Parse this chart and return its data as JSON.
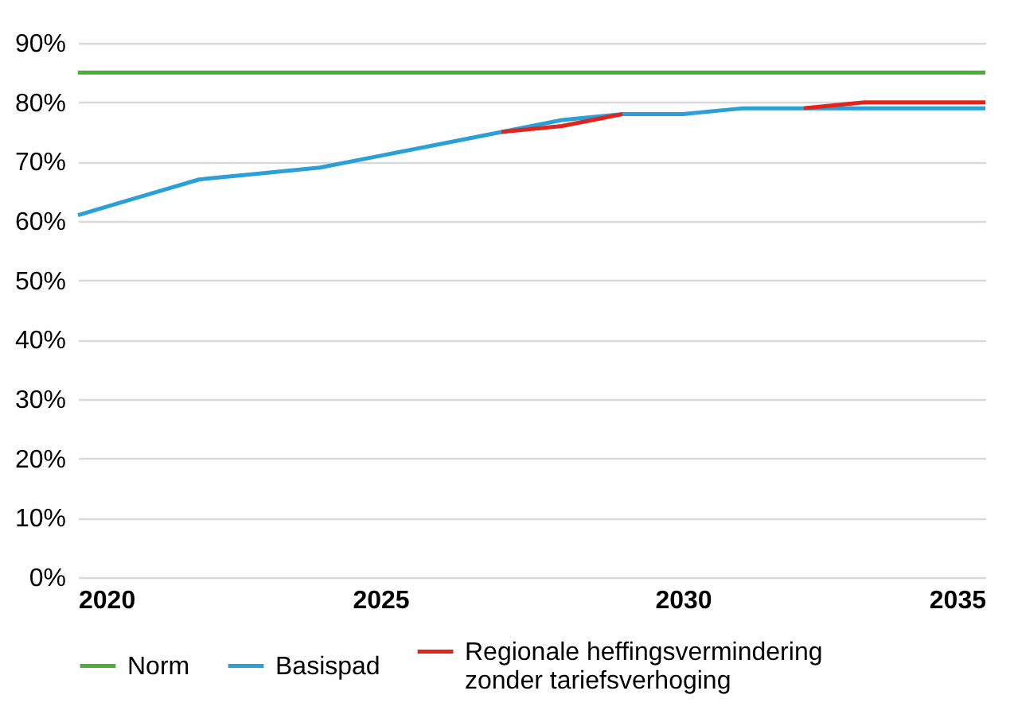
{
  "chart_data": {
    "type": "line",
    "x": [
      2020,
      2021,
      2022,
      2023,
      2024,
      2025,
      2026,
      2027,
      2028,
      2029,
      2030,
      2031,
      2032,
      2033,
      2034,
      2035
    ],
    "series": [
      {
        "name": "Norm",
        "color": "#4cae3a",
        "values": [
          85,
          85,
          85,
          85,
          85,
          85,
          85,
          85,
          85,
          85,
          85,
          85,
          85,
          85,
          85,
          85
        ]
      },
      {
        "name": "Basispad",
        "color": "#2a9fd8",
        "values": [
          61,
          64,
          67,
          68,
          69,
          71,
          73,
          75,
          77,
          78,
          78,
          79,
          79,
          79,
          79,
          79
        ]
      },
      {
        "name": "Regionale heffingsvermindering zonder tariefsverhoging",
        "color": "#e3241b",
        "values": [
          null,
          null,
          null,
          null,
          null,
          null,
          null,
          75,
          76,
          78,
          null,
          null,
          79,
          80,
          80,
          80
        ]
      }
    ],
    "xlim": [
      2020,
      2035
    ],
    "xticks": [
      2020,
      2025,
      2030,
      2035
    ],
    "ylim": [
      0,
      90
    ],
    "yticks": [
      {
        "value": 0,
        "label": "0%"
      },
      {
        "value": 10,
        "label": "10%"
      },
      {
        "value": 20,
        "label": "20%"
      },
      {
        "value": 30,
        "label": "30%"
      },
      {
        "value": 40,
        "label": "40%"
      },
      {
        "value": 50,
        "label": "50%"
      },
      {
        "value": 60,
        "label": "60%"
      },
      {
        "value": 70,
        "label": "70%"
      },
      {
        "value": 80,
        "label": "80%"
      },
      {
        "value": 90,
        "label": "90%"
      }
    ],
    "grid": "y",
    "legend": "bottom",
    "marker": "none",
    "line_style": "solid"
  }
}
